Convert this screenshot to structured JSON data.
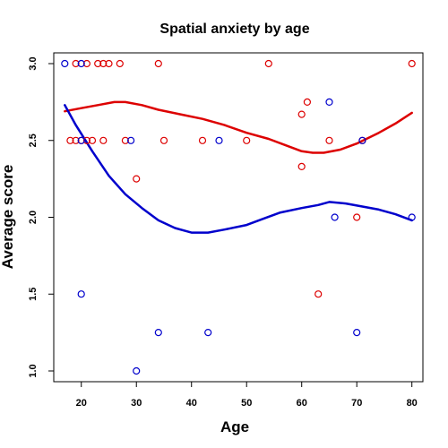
{
  "chart_data": {
    "type": "scatter",
    "title": "Spatial anxiety by age",
    "xlabel": "Age",
    "ylabel": "Average score",
    "xlim": [
      15,
      82
    ],
    "ylim": [
      0.93,
      3.07
    ],
    "xticks": [
      20,
      30,
      40,
      50,
      60,
      70,
      80
    ],
    "yticks": [
      1.0,
      1.5,
      2.0,
      2.5,
      3.0
    ],
    "grid": false,
    "series": [
      {
        "color": "#dd0000",
        "marker": "open-circle",
        "points": [
          [
            18,
            2.5
          ],
          [
            19,
            3.0
          ],
          [
            19,
            2.5
          ],
          [
            20,
            2.5
          ],
          [
            21,
            3.0
          ],
          [
            21,
            2.5
          ],
          [
            22,
            2.5
          ],
          [
            23,
            3.0
          ],
          [
            24,
            3.0
          ],
          [
            24,
            2.5
          ],
          [
            25,
            3.0
          ],
          [
            27,
            3.0
          ],
          [
            28,
            2.5
          ],
          [
            30,
            2.25
          ],
          [
            34,
            3.0
          ],
          [
            35,
            2.5
          ],
          [
            42,
            2.5
          ],
          [
            50,
            2.5
          ],
          [
            54,
            3.0
          ],
          [
            60,
            2.67
          ],
          [
            60,
            2.33
          ],
          [
            61,
            2.75
          ],
          [
            63,
            1.5
          ],
          [
            65,
            2.5
          ],
          [
            70,
            2.0
          ],
          [
            71,
            2.5
          ],
          [
            80,
            3.0
          ]
        ],
        "smooth": [
          [
            17,
            2.69
          ],
          [
            20,
            2.71
          ],
          [
            23,
            2.73
          ],
          [
            26,
            2.75
          ],
          [
            28,
            2.75
          ],
          [
            31,
            2.73
          ],
          [
            34,
            2.7
          ],
          [
            38,
            2.67
          ],
          [
            42,
            2.64
          ],
          [
            46,
            2.6
          ],
          [
            50,
            2.55
          ],
          [
            54,
            2.51
          ],
          [
            57,
            2.47
          ],
          [
            60,
            2.43
          ],
          [
            62,
            2.42
          ],
          [
            64,
            2.42
          ],
          [
            67,
            2.44
          ],
          [
            70,
            2.48
          ],
          [
            74,
            2.55
          ],
          [
            77,
            2.61
          ],
          [
            80,
            2.68
          ]
        ]
      },
      {
        "color": "#0000cc",
        "marker": "open-circle",
        "points": [
          [
            17,
            3.0
          ],
          [
            20,
            3.0
          ],
          [
            20,
            2.5
          ],
          [
            20,
            1.5
          ],
          [
            29,
            2.5
          ],
          [
            30,
            1.0
          ],
          [
            34,
            1.25
          ],
          [
            43,
            1.25
          ],
          [
            45,
            2.5
          ],
          [
            65,
            2.75
          ],
          [
            66,
            2.0
          ],
          [
            70,
            1.25
          ],
          [
            71,
            2.5
          ],
          [
            80,
            2.0
          ]
        ],
        "smooth": [
          [
            17,
            2.73
          ],
          [
            19,
            2.6
          ],
          [
            22,
            2.43
          ],
          [
            25,
            2.27
          ],
          [
            28,
            2.15
          ],
          [
            31,
            2.06
          ],
          [
            34,
            1.98
          ],
          [
            37,
            1.93
          ],
          [
            40,
            1.9
          ],
          [
            43,
            1.9
          ],
          [
            46,
            1.92
          ],
          [
            50,
            1.95
          ],
          [
            53,
            1.99
          ],
          [
            56,
            2.03
          ],
          [
            60,
            2.06
          ],
          [
            63,
            2.08
          ],
          [
            65,
            2.1
          ],
          [
            68,
            2.09
          ],
          [
            71,
            2.07
          ],
          [
            74,
            2.05
          ],
          [
            77,
            2.02
          ],
          [
            80,
            1.98
          ]
        ]
      }
    ]
  }
}
